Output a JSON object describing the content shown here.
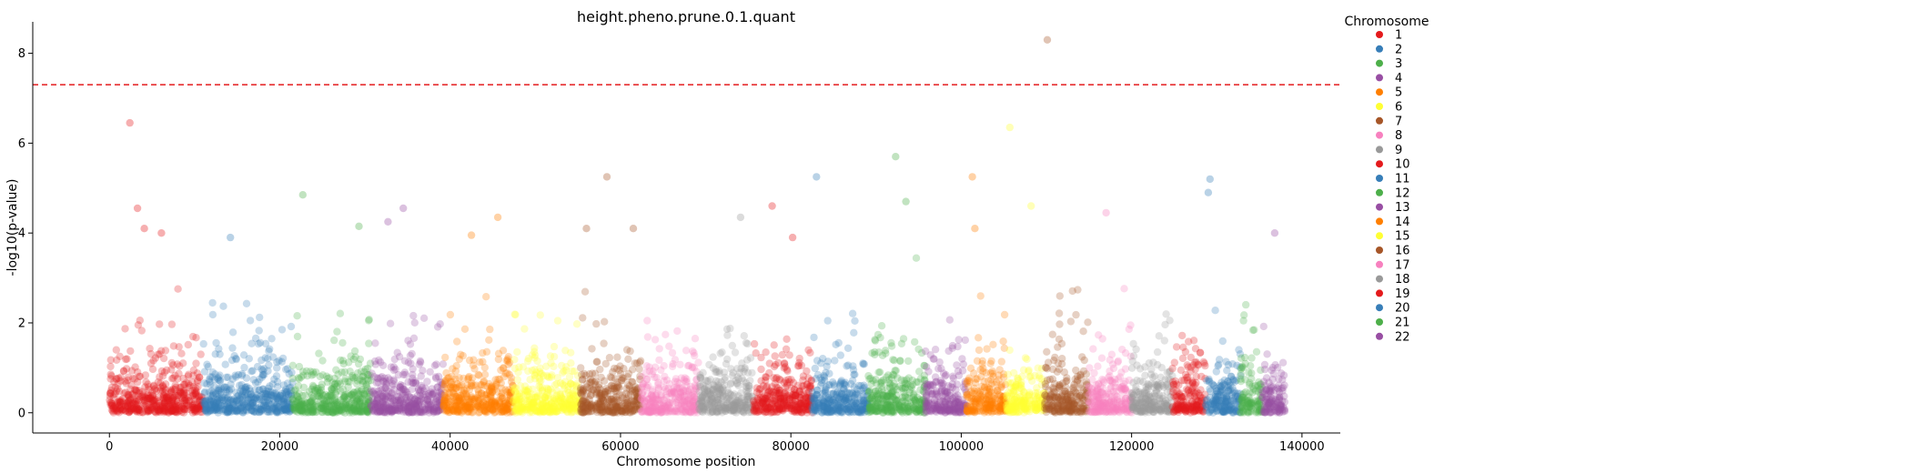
{
  "chart_data": {
    "type": "scatter",
    "title": "height.pheno.prune.0.1.quant",
    "xlabel": "Chromosome position",
    "ylabel": "-log10(p-value)",
    "xlim": [
      -9000,
      144500
    ],
    "ylim": [
      -0.45,
      8.7
    ],
    "xticks": [
      0,
      20000,
      40000,
      60000,
      80000,
      100000,
      120000,
      140000
    ],
    "yticks": [
      0,
      2,
      4,
      6,
      8
    ],
    "significance_line": {
      "y": 7.3,
      "color": "#e41a1c",
      "style": "dashed"
    },
    "grid": false,
    "legend_position": "outside-right",
    "legend_title": "Chromosome",
    "chromosomes": [
      {
        "name": "1",
        "start": 0,
        "end": 11000,
        "color": "#e41a1c"
      },
      {
        "name": "2",
        "start": 11000,
        "end": 21500,
        "color": "#377eb8"
      },
      {
        "name": "3",
        "start": 21500,
        "end": 30700,
        "color": "#4daf4a"
      },
      {
        "name": "4",
        "start": 30700,
        "end": 39200,
        "color": "#984ea3"
      },
      {
        "name": "5",
        "start": 39200,
        "end": 47400,
        "color": "#ff7f00"
      },
      {
        "name": "6",
        "start": 47400,
        "end": 55300,
        "color": "#ffff33"
      },
      {
        "name": "7",
        "start": 55300,
        "end": 62400,
        "color": "#a65628"
      },
      {
        "name": "8",
        "start": 62400,
        "end": 69200,
        "color": "#f781bf"
      },
      {
        "name": "9",
        "start": 69200,
        "end": 75600,
        "color": "#999999"
      },
      {
        "name": "10",
        "start": 75600,
        "end": 82500,
        "color": "#e41a1c"
      },
      {
        "name": "11",
        "start": 82500,
        "end": 89100,
        "color": "#377eb8"
      },
      {
        "name": "12",
        "start": 89100,
        "end": 95800,
        "color": "#4daf4a"
      },
      {
        "name": "13",
        "start": 95800,
        "end": 100600,
        "color": "#984ea3"
      },
      {
        "name": "14",
        "start": 100600,
        "end": 105300,
        "color": "#ff7f00"
      },
      {
        "name": "15",
        "start": 105300,
        "end": 109800,
        "color": "#ffff33"
      },
      {
        "name": "16",
        "start": 109800,
        "end": 114900,
        "color": "#a65628"
      },
      {
        "name": "17",
        "start": 114900,
        "end": 120000,
        "color": "#f781bf"
      },
      {
        "name": "18",
        "start": 120000,
        "end": 124800,
        "color": "#999999"
      },
      {
        "name": "19",
        "start": 124800,
        "end": 128700,
        "color": "#e41a1c"
      },
      {
        "name": "20",
        "start": 128700,
        "end": 132800,
        "color": "#377eb8"
      },
      {
        "name": "21",
        "start": 132800,
        "end": 135300,
        "color": "#4daf4a"
      },
      {
        "name": "22",
        "start": 135300,
        "end": 138000,
        "color": "#984ea3"
      }
    ],
    "highlight_points": [
      {
        "chrom": "1",
        "x": 2400,
        "y": 6.45
      },
      {
        "chrom": "1",
        "x": 3300,
        "y": 4.55
      },
      {
        "chrom": "1",
        "x": 4100,
        "y": 4.1
      },
      {
        "chrom": "1",
        "x": 6100,
        "y": 4.0
      },
      {
        "chrom": "2",
        "x": 14200,
        "y": 3.9
      },
      {
        "chrom": "3",
        "x": 22700,
        "y": 4.85
      },
      {
        "chrom": "3",
        "x": 29300,
        "y": 4.15
      },
      {
        "chrom": "4",
        "x": 34500,
        "y": 4.55
      },
      {
        "chrom": "4",
        "x": 32700,
        "y": 4.25
      },
      {
        "chrom": "5",
        "x": 45600,
        "y": 4.35
      },
      {
        "chrom": "5",
        "x": 42500,
        "y": 3.95
      },
      {
        "chrom": "7",
        "x": 58400,
        "y": 5.25
      },
      {
        "chrom": "7",
        "x": 56000,
        "y": 4.1
      },
      {
        "chrom": "7",
        "x": 61500,
        "y": 4.1
      },
      {
        "chrom": "9",
        "x": 74100,
        "y": 4.35
      },
      {
        "chrom": "10",
        "x": 77800,
        "y": 4.6
      },
      {
        "chrom": "10",
        "x": 80200,
        "y": 3.9
      },
      {
        "chrom": "11",
        "x": 83000,
        "y": 5.25
      },
      {
        "chrom": "12",
        "x": 92300,
        "y": 5.7
      },
      {
        "chrom": "12",
        "x": 93500,
        "y": 4.7
      },
      {
        "chrom": "14",
        "x": 101300,
        "y": 5.25
      },
      {
        "chrom": "14",
        "x": 101600,
        "y": 4.1
      },
      {
        "chrom": "15",
        "x": 105700,
        "y": 6.35
      },
      {
        "chrom": "15",
        "x": 108200,
        "y": 4.6
      },
      {
        "chrom": "16",
        "x": 110100,
        "y": 8.3
      },
      {
        "chrom": "17",
        "x": 117000,
        "y": 4.45
      },
      {
        "chrom": "20",
        "x": 129200,
        "y": 5.2
      },
      {
        "chrom": "20",
        "x": 129000,
        "y": 4.9
      },
      {
        "chrom": "22",
        "x": 136800,
        "y": 4.0
      }
    ]
  }
}
